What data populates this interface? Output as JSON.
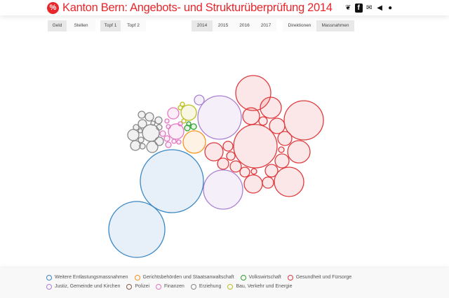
{
  "header": {
    "logo_text": "%",
    "title": "Kanton Bern: Angebots- und Strukturüberprüfung 2014",
    "social_icons": [
      "twitter-icon",
      "facebook-icon",
      "envelope-icon",
      "bullhorn-icon",
      "github-icon"
    ]
  },
  "controls": {
    "measure": [
      {
        "label": "Geld",
        "active": true
      },
      {
        "label": "Stellen",
        "active": false
      }
    ],
    "pot": [
      {
        "label": "Topf 1",
        "active": true
      },
      {
        "label": "Topf 2",
        "active": false
      }
    ],
    "year": [
      {
        "label": "2014",
        "active": true
      },
      {
        "label": "2015",
        "active": false
      },
      {
        "label": "2016",
        "active": false
      },
      {
        "label": "2017",
        "active": false
      }
    ],
    "grouping": [
      {
        "label": "Direktionen",
        "active": false
      },
      {
        "label": "Massnahmen",
        "active": true
      }
    ]
  },
  "legend": [
    {
      "label": "Weitere Entlastungsmassnahmen",
      "color": "#3a87c6"
    },
    {
      "label": "Gerichtsbehörden und Staatsanwaltschaft",
      "color": "#f7941d"
    },
    {
      "label": "Volkswirtschaft",
      "color": "#2ca02c"
    },
    {
      "label": "Gesundheit und Fürsorge",
      "color": "#e03a3e"
    },
    {
      "label": "Justiz, Gemeinde und Kirchen",
      "color": "#a97fd3"
    },
    {
      "label": "Polizei",
      "color": "#8c564b"
    },
    {
      "label": "Finanzen",
      "color": "#e377c2"
    },
    {
      "label": "Erziehung",
      "color": "#888888"
    },
    {
      "label": "Bau, Verkehr und Energie",
      "color": "#bcbd22"
    }
  ]
}
